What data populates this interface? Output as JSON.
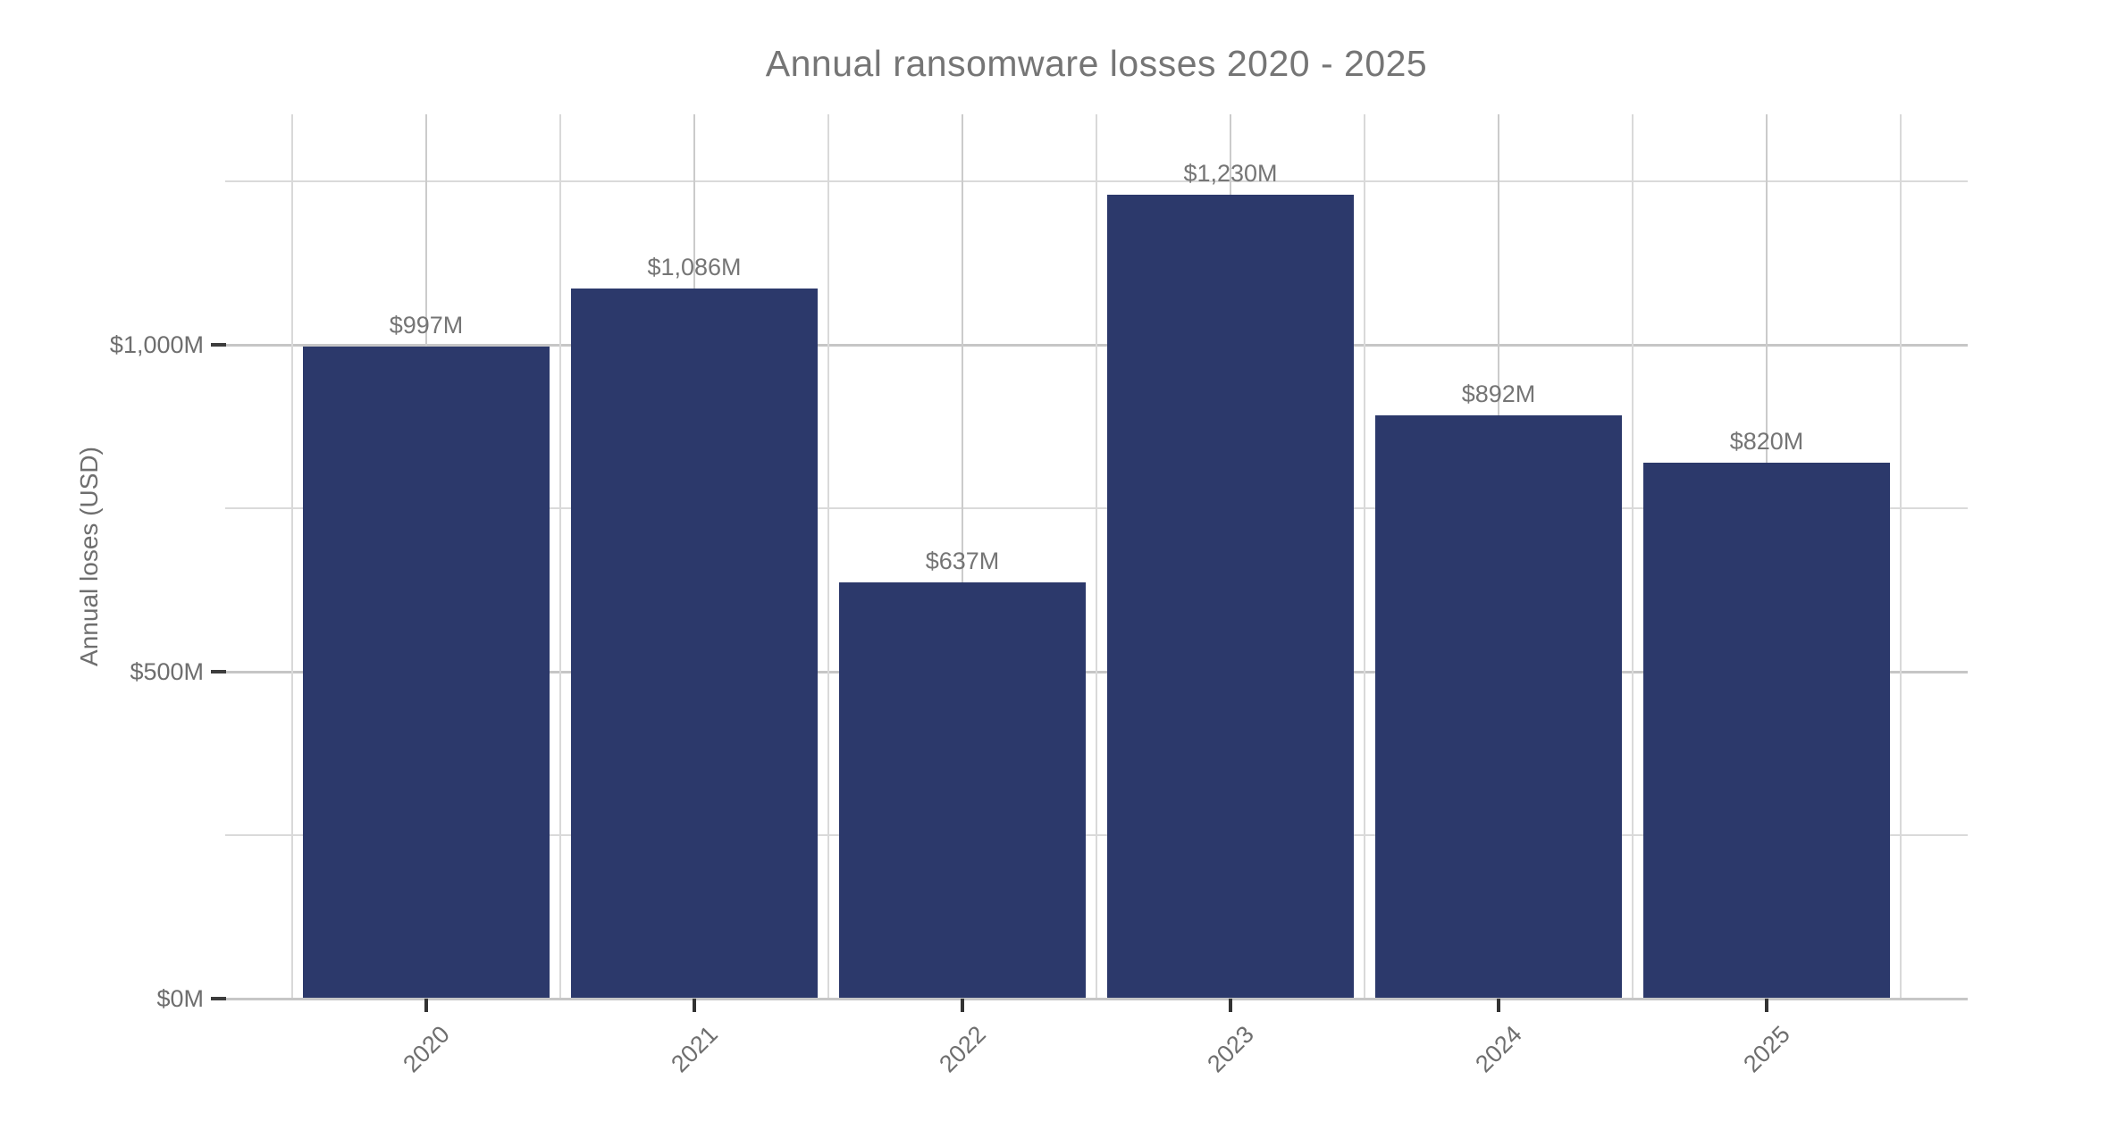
{
  "chart_data": {
    "type": "bar",
    "title": "Annual ransomware losses 2020 - 2025",
    "ylabel": "Annual loses (USD)",
    "xlabel": "",
    "categories": [
      "2020",
      "2021",
      "2022",
      "2023",
      "2024",
      "2025"
    ],
    "values": [
      997,
      1086,
      637,
      1230,
      892,
      820
    ],
    "value_labels": [
      "$997M",
      "$1,086M",
      "$637M",
      "$1,230M",
      "$892M",
      "$820M"
    ],
    "y_ticks": [
      {
        "value": 0,
        "label": "$0M"
      },
      {
        "value": 500,
        "label": "$500M"
      },
      {
        "value": 1000,
        "label": "$1,000M"
      }
    ],
    "y_minor_gridlines": [
      250,
      750,
      1250
    ],
    "ylim": [
      0,
      1353
    ],
    "grid": true,
    "legend": false,
    "bar_color": "#2c396b",
    "colors": {
      "title_text": "#757575",
      "tick_label_text": "#6e6e6e",
      "value_label_text": "#757575",
      "major_gridline": "#c6c6c6",
      "minor_gridline": "#dadada",
      "tick_mark": "#333333",
      "background": "#ffffff"
    }
  }
}
